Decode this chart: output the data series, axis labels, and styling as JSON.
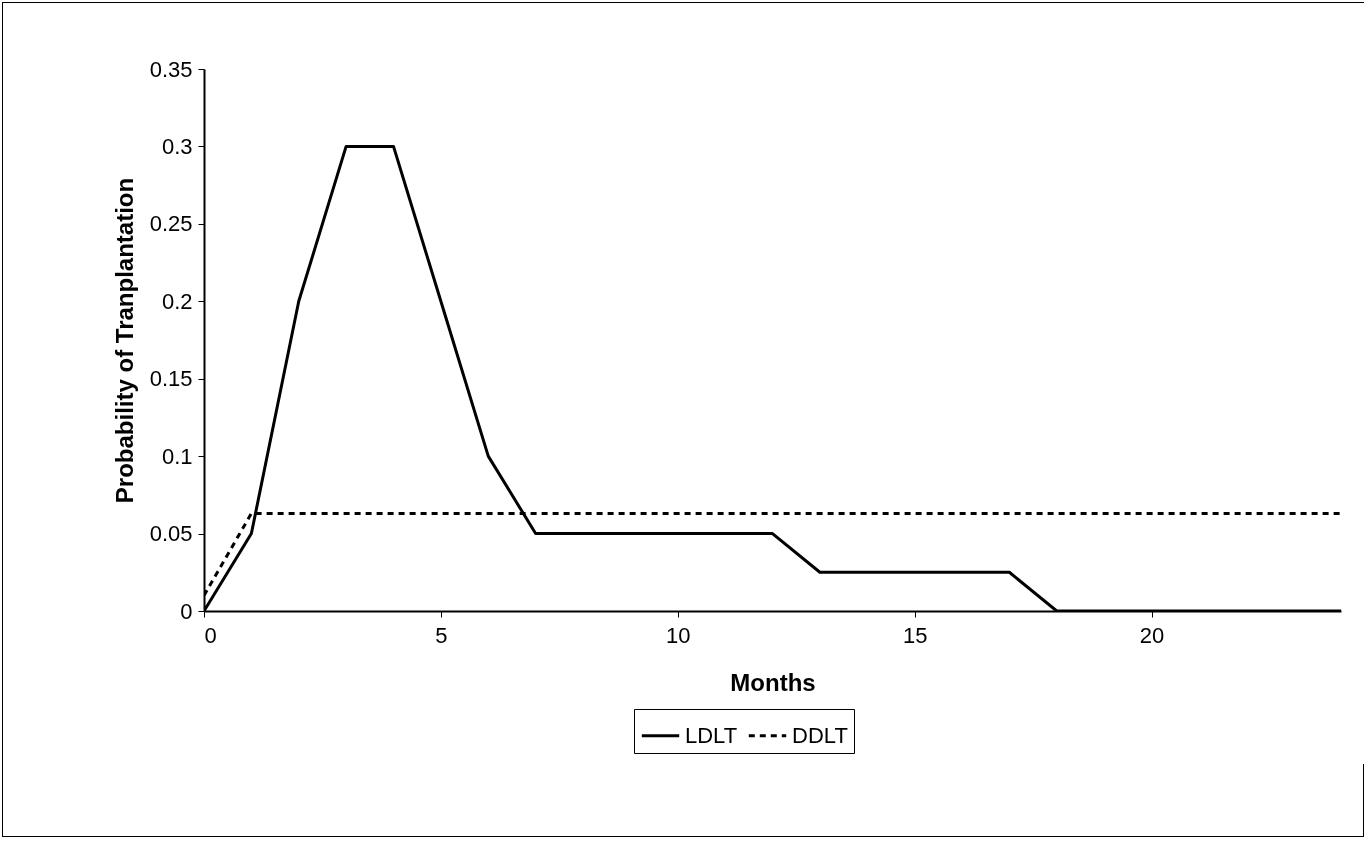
{
  "chart_data": {
    "type": "line",
    "xlabel": "Months",
    "ylabel": "Probability of Tranplantation",
    "x": [
      0,
      1,
      2,
      3,
      4,
      5,
      6,
      7,
      8,
      9,
      10,
      11,
      12,
      13,
      14,
      15,
      16,
      17,
      18,
      19,
      20,
      21,
      22,
      23,
      24
    ],
    "series": [
      {
        "name": "LDLT",
        "color": "#000000",
        "line_style": "solid",
        "values": [
          0,
          0.05,
          0.2,
          0.3,
          0.3,
          0.2,
          0.1,
          0.05,
          0.05,
          0.05,
          0.05,
          0.05,
          0.05,
          0.025,
          0.025,
          0.025,
          0.025,
          0.025,
          0,
          0,
          0,
          0,
          0,
          0,
          0
        ]
      },
      {
        "name": "DDLT",
        "color": "#000000",
        "line_style": "dashed",
        "values": [
          0.01,
          0.063,
          0.063,
          0.063,
          0.063,
          0.063,
          0.063,
          0.063,
          0.063,
          0.063,
          0.063,
          0.063,
          0.063,
          0.063,
          0.063,
          0.063,
          0.063,
          0.063,
          0.063,
          0.063,
          0.063,
          0.063,
          0.063,
          0.063,
          0.063
        ]
      }
    ],
    "xlim": [
      0,
      24
    ],
    "xticks": [
      0,
      5,
      10,
      15,
      20
    ],
    "ylim": [
      0,
      0.35
    ],
    "yticks": [
      0,
      0.05,
      0.1,
      0.15,
      0.2,
      0.25,
      0.3,
      0.35
    ],
    "grid": false,
    "legend": "bottom",
    "marker": "none"
  }
}
